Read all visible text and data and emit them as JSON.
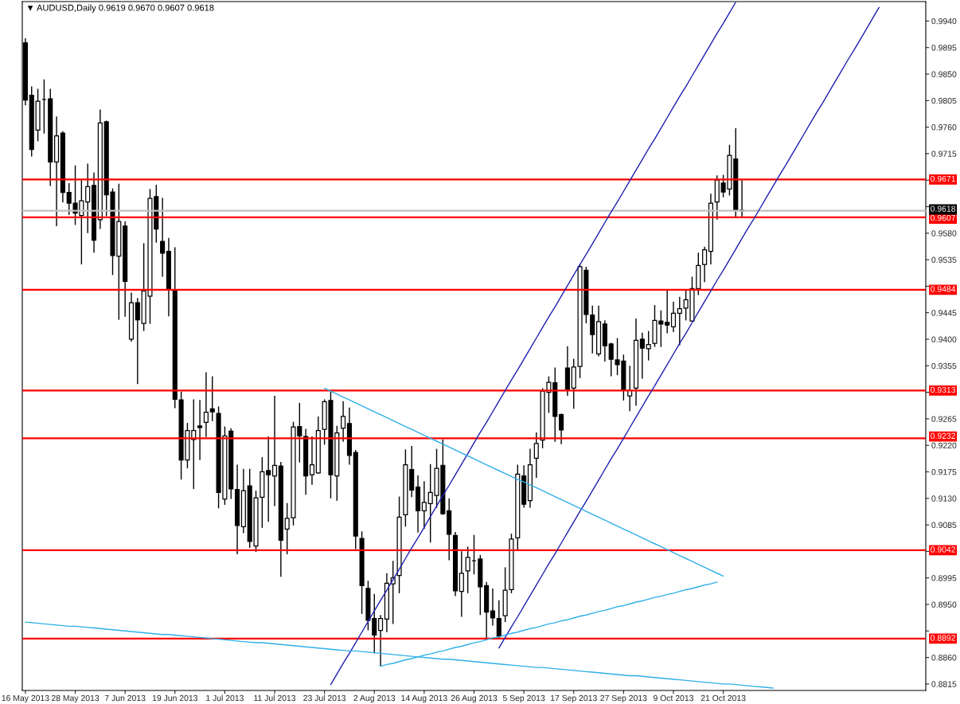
{
  "chart_data": {
    "type": "candlestick",
    "title": "▼ AUDUSD,Daily 0.9619 0.9670 0.9607 0.9618",
    "color": "#000000",
    "categories": [
      "16 May 2013",
      null,
      null,
      null,
      null,
      null,
      null,
      null,
      "28 May 2013",
      null,
      null,
      null,
      null,
      null,
      null,
      null,
      "7 Jun 2013",
      null,
      null,
      null,
      null,
      null,
      null,
      null,
      "19 Jun 2013",
      null,
      null,
      null,
      null,
      null,
      null,
      null,
      "1 Jul 2013",
      null,
      null,
      null,
      null,
      null,
      null,
      null,
      "11 Jul 2013",
      null,
      null,
      null,
      null,
      null,
      null,
      null,
      "23 Jul 2013",
      null,
      null,
      null,
      null,
      null,
      null,
      null,
      "2 Aug 2013",
      null,
      null,
      null,
      null,
      null,
      null,
      null,
      "14 Aug 2013",
      null,
      null,
      null,
      null,
      null,
      null,
      null,
      "26 Aug 2013",
      null,
      null,
      null,
      null,
      null,
      null,
      null,
      "5 Sep 2013",
      null,
      null,
      null,
      null,
      null,
      null,
      null,
      "17 Sep 2013",
      null,
      null,
      null,
      null,
      null,
      null,
      null,
      "27 Sep 2013",
      null,
      null,
      null,
      null,
      null,
      null,
      null,
      "9 Oct 2013",
      null,
      null,
      null,
      null,
      null,
      null,
      null,
      "21 Oct 2013",
      null,
      null,
      null,
      null,
      null,
      null,
      null,
      null,
      null,
      null,
      null,
      null,
      null,
      null,
      null,
      null,
      null,
      null,
      null,
      null,
      null,
      null,
      null,
      null,
      null,
      null,
      null,
      null,
      null,
      null,
      null,
      null
    ],
    "ohlc": [
      [
        0.9903,
        0.9911,
        0.9797,
        0.9806
      ],
      [
        0.9814,
        0.9829,
        0.971,
        0.9722
      ],
      [
        0.9755,
        0.9825,
        0.9736,
        0.9804
      ],
      [
        0.9807,
        0.9841,
        0.9749,
        0.9807
      ],
      [
        0.9808,
        0.9825,
        0.966,
        0.9701
      ],
      [
        0.9701,
        0.9778,
        0.9592,
        0.9745
      ],
      [
        0.975,
        0.9753,
        0.9632,
        0.9649
      ],
      [
        0.9649,
        0.9665,
        0.9611,
        0.9631
      ],
      [
        0.9631,
        0.9695,
        0.9594,
        0.9614
      ],
      [
        0.961,
        0.967,
        0.9527,
        0.9635
      ],
      [
        0.9633,
        0.9698,
        0.958,
        0.9659
      ],
      [
        0.9661,
        0.9683,
        0.9547,
        0.9568
      ],
      [
        0.9603,
        0.979,
        0.9587,
        0.9767
      ],
      [
        0.9769,
        0.9771,
        0.9609,
        0.9645
      ],
      [
        0.965,
        0.9656,
        0.9509,
        0.9542
      ],
      [
        0.9541,
        0.9664,
        0.9433,
        0.96
      ],
      [
        0.9592,
        0.96,
        0.9438,
        0.9498
      ],
      [
        0.94,
        0.9479,
        0.9396,
        0.9462
      ],
      [
        0.9462,
        0.947,
        0.9324,
        0.9433
      ],
      [
        0.9427,
        0.9563,
        0.9414,
        0.9482
      ],
      [
        0.9473,
        0.9655,
        0.9426,
        0.9639
      ],
      [
        0.9642,
        0.9662,
        0.9564,
        0.9587
      ],
      [
        0.9566,
        0.964,
        0.9506,
        0.9546
      ],
      [
        0.9549,
        0.9572,
        0.9439,
        0.9486
      ],
      [
        0.9483,
        0.9556,
        0.9283,
        0.9298
      ],
      [
        0.9297,
        0.9311,
        0.9162,
        0.9195
      ],
      [
        0.9195,
        0.9258,
        0.9181,
        0.9245
      ],
      [
        0.923,
        0.9298,
        0.9146,
        0.9245
      ],
      [
        0.9253,
        0.9297,
        0.9195,
        0.925
      ],
      [
        0.9259,
        0.9344,
        0.9234,
        0.9276
      ],
      [
        0.9282,
        0.9337,
        0.9261,
        0.9277
      ],
      [
        0.9274,
        0.9286,
        0.9113,
        0.914
      ],
      [
        0.9129,
        0.9252,
        0.9119,
        0.9236
      ],
      [
        0.9244,
        0.9249,
        0.9129,
        0.9146
      ],
      [
        0.9145,
        0.9187,
        0.9035,
        0.9084
      ],
      [
        0.9082,
        0.918,
        0.9071,
        0.9143
      ],
      [
        0.9151,
        0.918,
        0.9046,
        0.9057
      ],
      [
        0.9049,
        0.9143,
        0.9039,
        0.9131
      ],
      [
        0.9132,
        0.92,
        0.908,
        0.9175
      ],
      [
        0.9177,
        0.9235,
        0.909,
        0.917
      ],
      [
        0.9168,
        0.9304,
        0.9117,
        0.9186
      ],
      [
        0.9185,
        0.9192,
        0.8997,
        0.9059
      ],
      [
        0.9078,
        0.9122,
        0.9035,
        0.9096
      ],
      [
        0.9097,
        0.926,
        0.9084,
        0.9251
      ],
      [
        0.9252,
        0.9292,
        0.9191,
        0.9236
      ],
      [
        0.9235,
        0.9248,
        0.9136,
        0.9168
      ],
      [
        0.917,
        0.9235,
        0.9153,
        0.9187
      ],
      [
        0.9173,
        0.9269,
        0.9172,
        0.9245
      ],
      [
        0.9247,
        0.9298,
        0.9221,
        0.9294
      ],
      [
        0.9296,
        0.9313,
        0.913,
        0.917
      ],
      [
        0.9168,
        0.9253,
        0.9126,
        0.9241
      ],
      [
        0.9249,
        0.9295,
        0.9226,
        0.9269
      ],
      [
        0.9257,
        0.9284,
        0.9187,
        0.9203
      ],
      [
        0.9208,
        0.9212,
        0.9044,
        0.9066
      ],
      [
        0.9062,
        0.9074,
        0.8934,
        0.8982
      ],
      [
        0.8977,
        0.899,
        0.8906,
        0.8923
      ],
      [
        0.8926,
        0.8968,
        0.8867,
        0.8898
      ],
      [
        0.8906,
        0.8932,
        0.8845,
        0.8926
      ],
      [
        0.8925,
        0.9003,
        0.8903,
        0.8986
      ],
      [
        0.8985,
        0.9024,
        0.8917,
        0.8995
      ],
      [
        0.8999,
        0.9133,
        0.8969,
        0.9098
      ],
      [
        0.9102,
        0.9213,
        0.9082,
        0.9187
      ],
      [
        0.9179,
        0.9219,
        0.9132,
        0.9144
      ],
      [
        0.9149,
        0.9169,
        0.9072,
        0.9109
      ],
      [
        0.9109,
        0.9159,
        0.9078,
        0.9123
      ],
      [
        0.9121,
        0.9188,
        0.9055,
        0.914
      ],
      [
        0.9135,
        0.9214,
        0.9114,
        0.9181
      ],
      [
        0.9186,
        0.923,
        0.9102,
        0.9104
      ],
      [
        0.9109,
        0.913,
        0.9025,
        0.9069
      ],
      [
        0.9067,
        0.9073,
        0.8964,
        0.8973
      ],
      [
        0.8972,
        0.904,
        0.8929,
        0.9003
      ],
      [
        0.9007,
        0.9048,
        0.8969,
        0.903
      ],
      [
        0.9024,
        0.9068,
        0.9001,
        0.9024
      ],
      [
        0.9027,
        0.9034,
        0.8932,
        0.898
      ],
      [
        0.8982,
        0.8988,
        0.8891,
        0.8937
      ],
      [
        0.8939,
        0.8977,
        0.8914,
        0.8927
      ],
      [
        0.8926,
        0.8957,
        0.8891,
        0.8896
      ],
      [
        0.8931,
        0.9013,
        0.892,
        0.8974
      ],
      [
        0.8975,
        0.907,
        0.8969,
        0.9061
      ],
      [
        0.9063,
        0.9187,
        0.9041,
        0.9171
      ],
      [
        0.9168,
        0.9186,
        0.9114,
        0.912
      ],
      [
        0.9126,
        0.9214,
        0.9114,
        0.9187
      ],
      [
        0.9198,
        0.9242,
        0.9165,
        0.9223
      ],
      [
        0.9229,
        0.9317,
        0.9215,
        0.9312
      ],
      [
        0.931,
        0.9337,
        0.9275,
        0.9327
      ],
      [
        0.9326,
        0.9352,
        0.9226,
        0.9269
      ],
      [
        0.9272,
        0.9274,
        0.9222,
        0.9246
      ],
      [
        0.9351,
        0.9388,
        0.9304,
        0.9315
      ],
      [
        0.9317,
        0.9367,
        0.9282,
        0.9353
      ],
      [
        0.9354,
        0.9527,
        0.9334,
        0.9523
      ],
      [
        0.9517,
        0.9523,
        0.9427,
        0.9442
      ],
      [
        0.9441,
        0.9457,
        0.9376,
        0.9408
      ],
      [
        0.9375,
        0.9457,
        0.9371,
        0.943
      ],
      [
        0.9426,
        0.9432,
        0.9362,
        0.9389
      ],
      [
        0.9392,
        0.9394,
        0.9337,
        0.9366
      ],
      [
        0.9365,
        0.9402,
        0.9339,
        0.9357
      ],
      [
        0.9363,
        0.9374,
        0.9296,
        0.9314
      ],
      [
        0.9304,
        0.9355,
        0.9278,
        0.9313
      ],
      [
        0.9317,
        0.9435,
        0.9287,
        0.9398
      ],
      [
        0.94,
        0.9411,
        0.9333,
        0.9385
      ],
      [
        0.9384,
        0.9414,
        0.9364,
        0.9391
      ],
      [
        0.9393,
        0.9458,
        0.9387,
        0.9432
      ],
      [
        0.9431,
        0.9449,
        0.9387,
        0.9426
      ],
      [
        0.9429,
        0.9483,
        0.941,
        0.9424
      ],
      [
        0.9421,
        0.9464,
        0.9412,
        0.9444
      ],
      [
        0.9444,
        0.9472,
        0.939,
        0.9452
      ],
      [
        0.9453,
        0.9483,
        0.9432,
        0.9467
      ],
      [
        0.9431,
        0.9506,
        0.943,
        0.9486
      ],
      [
        0.9486,
        0.9547,
        0.9475,
        0.9525
      ],
      [
        0.9527,
        0.9557,
        0.9497,
        0.9552
      ],
      [
        0.9549,
        0.9647,
        0.9527,
        0.9631
      ],
      [
        0.9633,
        0.9678,
        0.9603,
        0.967
      ],
      [
        0.9665,
        0.9679,
        0.9641,
        0.965
      ],
      [
        0.9655,
        0.973,
        0.9644,
        0.9712
      ],
      [
        0.9706,
        0.9758,
        0.9608,
        0.9619
      ],
      [
        0.9619,
        0.967,
        0.9607,
        0.9618
      ],
      null,
      null,
      null,
      null,
      null,
      null,
      null,
      null,
      null,
      null,
      null,
      null,
      null,
      null,
      null,
      null,
      null,
      null,
      null,
      null,
      null,
      null,
      null,
      null,
      null,
      null,
      null,
      null,
      null
    ],
    "series": [
      {
        "type": "line",
        "color": "#1f1fb0",
        "values": [
          null,
          null,
          null,
          null,
          null,
          null,
          null,
          null,
          null,
          null,
          null,
          null,
          null,
          null,
          null,
          null,
          null,
          null,
          null,
          null,
          null,
          null,
          null,
          null,
          null,
          null,
          null,
          null,
          null,
          null,
          null,
          null,
          null,
          null,
          null,
          null,
          null,
          null,
          null,
          null,
          null,
          null,
          null,
          null,
          null,
          null,
          null,
          null,
          null,
          0.8814,
          0.8832,
          0.885,
          0.8867,
          0.8885,
          0.8903,
          0.8921,
          0.8939,
          0.8957,
          0.8974,
          0.8992,
          0.901,
          0.9028,
          0.9046,
          0.9063,
          0.9081,
          0.9099,
          0.9117,
          0.9135,
          0.9152,
          0.917,
          0.9188,
          0.9206,
          0.9224,
          0.9242,
          0.9259,
          0.9277,
          0.9295,
          0.9313,
          0.9331,
          0.9348,
          0.9366,
          0.9384,
          0.9402,
          0.942,
          0.9438,
          0.9455,
          0.9473,
          0.9491,
          0.9509,
          0.9527,
          0.9544,
          0.9562,
          0.958,
          0.9598,
          0.9616,
          0.9633,
          0.9651,
          0.9669,
          0.9687,
          0.9705,
          0.9723,
          0.974,
          0.9758,
          0.9776,
          0.9794,
          0.9812,
          0.9829,
          0.9847,
          0.9865,
          0.9883,
          0.9901,
          0.9919,
          0.9936,
          0.9954,
          0.9972,
          null,
          null,
          null,
          null,
          null,
          null,
          null,
          null,
          null,
          null,
          null,
          null,
          null,
          null,
          null,
          null,
          null,
          null,
          null,
          null,
          null,
          null,
          null,
          null,
          null,
          null,
          null,
          null,
          null,
          null
        ]
      },
      {
        "type": "line",
        "color": "#1f1fb0",
        "values": [
          null,
          null,
          null,
          null,
          null,
          null,
          null,
          null,
          null,
          null,
          null,
          null,
          null,
          null,
          null,
          null,
          null,
          null,
          null,
          null,
          null,
          null,
          null,
          null,
          null,
          null,
          null,
          null,
          null,
          null,
          null,
          null,
          null,
          null,
          null,
          null,
          null,
          null,
          null,
          null,
          null,
          null,
          null,
          null,
          null,
          null,
          null,
          null,
          null,
          null,
          null,
          null,
          null,
          null,
          null,
          null,
          null,
          null,
          null,
          null,
          null,
          null,
          null,
          null,
          null,
          null,
          null,
          null,
          null,
          null,
          null,
          null,
          null,
          null,
          null,
          null,
          0.8876,
          0.8894,
          0.8912,
          0.8929,
          0.8947,
          0.8965,
          0.8983,
          0.9001,
          0.9019,
          0.9036,
          0.9054,
          0.9072,
          0.909,
          0.9108,
          0.9125,
          0.9143,
          0.9161,
          0.9179,
          0.9197,
          0.9214,
          0.9232,
          0.925,
          0.9268,
          0.9286,
          0.9304,
          0.9321,
          0.9339,
          0.9357,
          0.9375,
          0.9393,
          0.941,
          0.9428,
          0.9446,
          0.9464,
          0.9482,
          0.95,
          0.9517,
          0.9535,
          0.9553,
          0.9571,
          0.9589,
          0.9606,
          0.9624,
          0.9642,
          0.966,
          0.9678,
          0.9695,
          0.9713,
          0.9731,
          0.9749,
          0.9767,
          0.9785,
          0.9802,
          0.982,
          0.9838,
          0.9856,
          0.9874,
          0.9891,
          0.9909,
          0.9927,
          0.9945,
          0.9963,
          null,
          null,
          null,
          null,
          null,
          null,
          null
        ]
      },
      {
        "type": "line",
        "color": "#2fb0e8",
        "values": [
          null,
          null,
          null,
          null,
          null,
          null,
          null,
          null,
          null,
          null,
          null,
          null,
          null,
          null,
          null,
          null,
          null,
          null,
          null,
          null,
          null,
          null,
          null,
          null,
          null,
          null,
          null,
          null,
          null,
          null,
          null,
          null,
          null,
          null,
          null,
          null,
          null,
          null,
          null,
          null,
          null,
          null,
          null,
          null,
          null,
          null,
          null,
          null,
          0.9317,
          0.9312,
          0.9307,
          0.9302,
          0.9297,
          0.9292,
          0.9287,
          0.9282,
          0.9277,
          0.9272,
          0.9267,
          0.9262,
          0.9257,
          0.9252,
          0.9247,
          0.9242,
          0.9237,
          0.9232,
          0.9227,
          0.9222,
          0.9217,
          0.9212,
          0.9207,
          0.9202,
          0.9197,
          0.9192,
          0.9187,
          0.9182,
          0.9177,
          0.9172,
          0.9167,
          0.9162,
          0.9158,
          0.9153,
          0.9148,
          0.9143,
          0.9138,
          0.9133,
          0.9128,
          0.9123,
          0.9118,
          0.9113,
          0.9108,
          0.9103,
          0.9098,
          0.9093,
          0.9088,
          0.9083,
          0.9078,
          0.9073,
          0.9068,
          0.9063,
          0.9058,
          0.9053,
          0.9048,
          0.9043,
          0.9038,
          0.9033,
          0.9028,
          0.9023,
          0.9018,
          0.9013,
          0.9008,
          0.9003,
          0.8998,
          null,
          null,
          null,
          null,
          null,
          null,
          null,
          null,
          null,
          null,
          null,
          null,
          null,
          null,
          null,
          null,
          null,
          null,
          null,
          null,
          null,
          null,
          null,
          null,
          null,
          null,
          null,
          null,
          null,
          null,
          null,
          null
        ]
      },
      {
        "type": "line",
        "color": "#2fb0e8",
        "values": [
          null,
          null,
          null,
          null,
          null,
          null,
          null,
          null,
          null,
          null,
          null,
          null,
          null,
          null,
          null,
          null,
          null,
          null,
          null,
          null,
          null,
          null,
          null,
          null,
          null,
          null,
          null,
          null,
          null,
          null,
          null,
          null,
          null,
          null,
          null,
          null,
          null,
          null,
          null,
          null,
          null,
          null,
          null,
          null,
          null,
          null,
          null,
          null,
          null,
          null,
          null,
          null,
          null,
          null,
          null,
          null,
          null,
          0.8845,
          0.8848,
          0.885,
          0.8853,
          0.8856,
          0.8858,
          0.8861,
          0.8864,
          0.8866,
          0.8869,
          0.8871,
          0.8874,
          0.8877,
          0.8879,
          0.8882,
          0.8885,
          0.8887,
          0.889,
          0.8893,
          0.8895,
          0.8898,
          0.8901,
          0.8903,
          0.8906,
          0.8909,
          0.8911,
          0.8914,
          0.8917,
          0.8919,
          0.8922,
          0.8924,
          0.8927,
          0.893,
          0.8932,
          0.8935,
          0.8938,
          0.894,
          0.8943,
          0.8946,
          0.8948,
          0.8951,
          0.8954,
          0.8956,
          0.8959,
          0.8962,
          0.8964,
          0.8967,
          0.8969,
          0.8972,
          0.8975,
          0.8977,
          0.898,
          0.8983,
          0.8985,
          0.8988,
          null,
          null,
          null,
          null,
          null,
          null,
          null,
          null,
          null,
          null,
          null,
          null,
          null,
          null,
          null,
          null,
          null,
          null,
          null,
          null,
          null,
          null,
          null,
          null,
          null,
          null,
          null,
          null,
          null,
          null,
          null,
          null,
          null
        ]
      },
      {
        "type": "line",
        "color": "#2fb0e8",
        "values": [
          0.892,
          0.8919,
          0.8918,
          0.8917,
          0.8916,
          0.8915,
          0.8914,
          0.8913,
          0.8913,
          0.8912,
          0.8911,
          0.891,
          0.8909,
          0.8908,
          0.8907,
          0.8906,
          0.8905,
          0.8904,
          0.8903,
          0.8902,
          0.8901,
          0.89,
          0.8899,
          0.8899,
          0.8898,
          0.8897,
          0.8896,
          0.8895,
          0.8894,
          0.8893,
          0.8892,
          0.8891,
          0.889,
          0.8889,
          0.8888,
          0.8887,
          0.8886,
          0.8885,
          0.8885,
          0.8884,
          0.8883,
          0.8882,
          0.8881,
          0.888,
          0.8879,
          0.8878,
          0.8877,
          0.8876,
          0.8875,
          0.8874,
          0.8873,
          0.8872,
          0.8871,
          0.8871,
          0.887,
          0.8869,
          0.8868,
          0.8867,
          0.8866,
          0.8865,
          0.8864,
          0.8863,
          0.8862,
          0.8861,
          0.886,
          0.8859,
          0.8858,
          0.8857,
          0.8857,
          0.8856,
          0.8855,
          0.8854,
          0.8853,
          0.8852,
          0.8851,
          0.885,
          0.8849,
          0.8848,
          0.8847,
          0.8846,
          0.8845,
          0.8844,
          0.8843,
          0.8843,
          0.8842,
          0.8841,
          0.884,
          0.8839,
          0.8838,
          0.8837,
          0.8836,
          0.8835,
          0.8834,
          0.8833,
          0.8832,
          0.8831,
          0.883,
          0.8829,
          0.8829,
          0.8828,
          0.8827,
          0.8826,
          0.8825,
          0.8824,
          0.8823,
          0.8822,
          0.8821,
          0.882,
          0.8819,
          0.8818,
          0.8817,
          0.8816,
          0.8815,
          0.8815,
          0.8814,
          0.8813,
          0.8812,
          0.8811,
          0.881,
          0.8809,
          0.8808,
          null,
          null,
          null,
          null,
          null,
          null,
          null,
          null,
          null,
          null,
          null,
          null,
          null,
          null,
          null,
          null,
          null,
          null,
          null,
          null,
          null,
          null,
          null,
          null
        ]
      }
    ],
    "ref_lines": [
      {
        "axis": "y",
        "value": 0.9671,
        "label": "0.9671",
        "color": "#ff0000"
      },
      {
        "axis": "y",
        "value": 0.9618,
        "label": "0.9618",
        "color": "#c0c0c0"
      },
      {
        "axis": "y",
        "value": 0.9607,
        "label": "0.9607",
        "color": "#ff0000"
      },
      {
        "axis": "y",
        "value": 0.9484,
        "label": "0.9484",
        "color": "#ff0000"
      },
      {
        "axis": "y",
        "value": 0.9313,
        "label": "0.9313",
        "color": "#ff0000"
      },
      {
        "axis": "y",
        "value": 0.9232,
        "label": "0.9232",
        "color": "#ff0000"
      },
      {
        "axis": "y",
        "value": 0.9042,
        "label": "0.9042",
        "color": "#ff0000"
      },
      {
        "axis": "y",
        "value": 0.8892,
        "label": "0.8892",
        "color": "#ff0000"
      }
    ],
    "ylim": [
      0.8804,
      0.9973
    ],
    "yticks": [
      {
        "value": 0.8815,
        "label": "0.8815"
      },
      {
        "value": 0.886,
        "label": "0.8860"
      },
      {
        "value": 0.8905,
        "label": null
      },
      {
        "value": 0.895,
        "label": "0.8950"
      },
      {
        "value": 0.8995,
        "label": "0.8995"
      },
      {
        "value": 0.904,
        "label": null
      },
      {
        "value": 0.9085,
        "label": "0.9085"
      },
      {
        "value": 0.913,
        "label": "0.9130"
      },
      {
        "value": 0.9175,
        "label": "0.9175"
      },
      {
        "value": 0.922,
        "label": "0.9220"
      },
      {
        "value": 0.9265,
        "label": "0.9265"
      },
      {
        "value": 0.931,
        "label": null
      },
      {
        "value": 0.9355,
        "label": "0.9355"
      },
      {
        "value": 0.94,
        "label": "0.9400"
      },
      {
        "value": 0.9445,
        "label": "0.9445"
      },
      {
        "value": 0.949,
        "label": null
      },
      {
        "value": 0.9535,
        "label": "0.9535"
      },
      {
        "value": 0.958,
        "label": "0.9580"
      },
      {
        "value": 0.9625,
        "label": null
      },
      {
        "value": 0.967,
        "label": null
      },
      {
        "value": 0.9715,
        "label": "0.9715"
      },
      {
        "value": 0.976,
        "label": "0.9760"
      },
      {
        "value": 0.9805,
        "label": "0.9805"
      },
      {
        "value": 0.985,
        "label": "0.9850"
      },
      {
        "value": 0.9895,
        "label": "0.9895"
      },
      {
        "value": 0.994,
        "label": "0.9940"
      }
    ]
  }
}
